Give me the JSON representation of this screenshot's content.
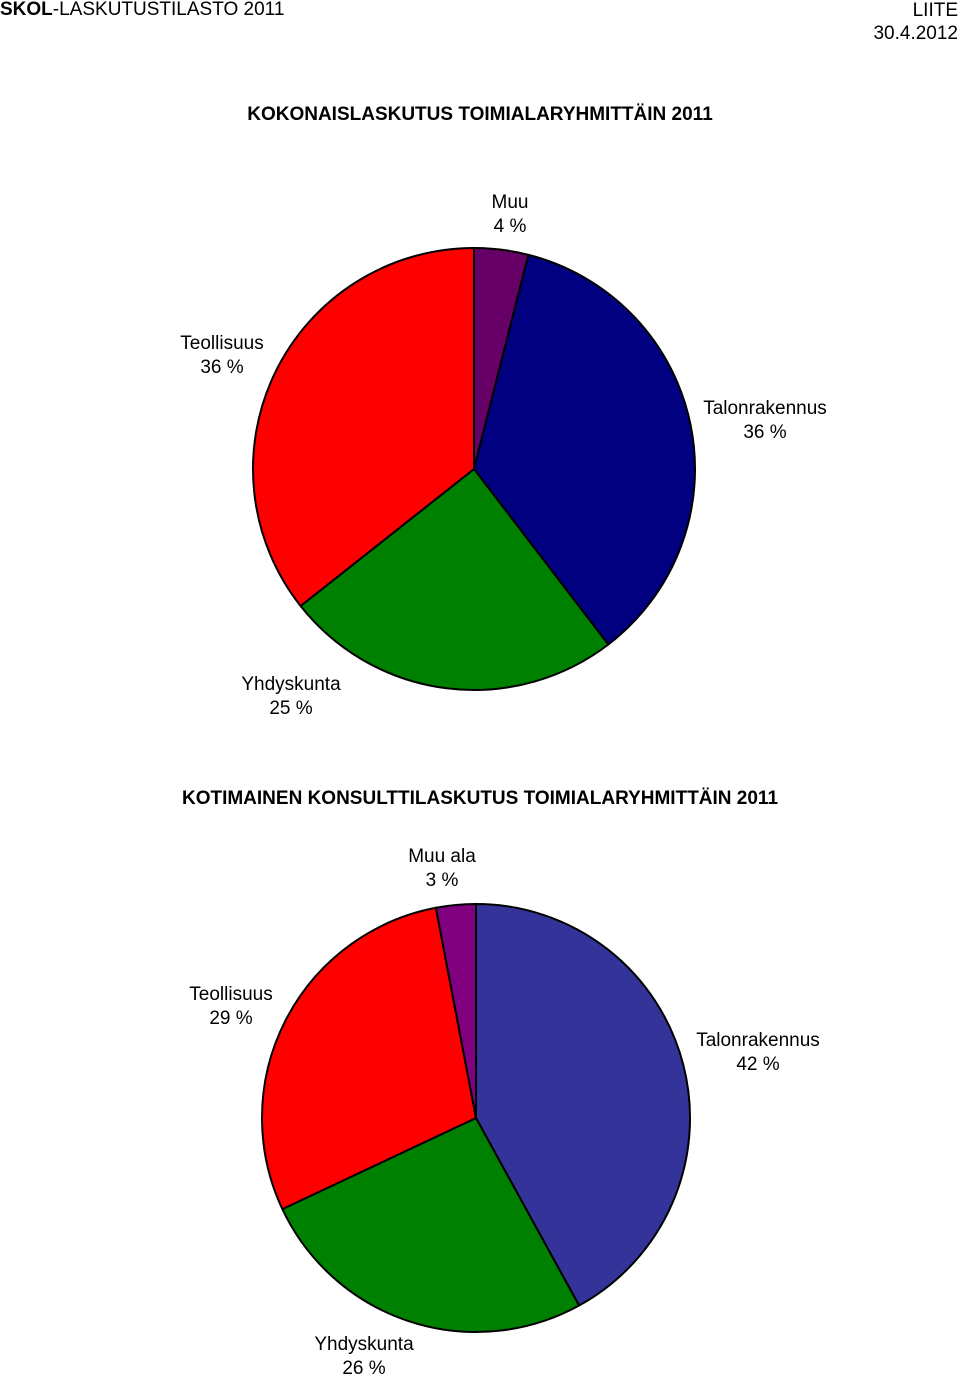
{
  "header": {
    "brand": "SKOL",
    "title_rest": "-LASKUTUSTILASTO 2011",
    "attachment": "LIITE",
    "date": "30.4.2012"
  },
  "chart_data": [
    {
      "type": "pie",
      "title": "KOKONAISLASKUTUS TOIMIALARYHMITTÄIN 2011",
      "slices": [
        {
          "label": "Muu",
          "value": 4,
          "value_label": "4 %",
          "color": "#660066"
        },
        {
          "label": "Talonrakennus",
          "value": 36,
          "value_label": "36 %",
          "color": "#000080"
        },
        {
          "label": "Yhdyskunta",
          "value": 25,
          "value_label": "25 %",
          "color": "#008000"
        },
        {
          "label": "Teollisuus",
          "value": 36,
          "value_label": "36 %",
          "color": "#FF0000"
        }
      ]
    },
    {
      "type": "pie",
      "title": "KOTIMAINEN KONSULTTILASKUTUS TOIMIALARYHMITTÄIN 2011",
      "slices": [
        {
          "label": "Talonrakennus",
          "value": 42,
          "value_label": "42 %",
          "color": "#333399"
        },
        {
          "label": "Yhdyskunta",
          "value": 26,
          "value_label": "26 %",
          "color": "#008000"
        },
        {
          "label": "Teollisuus",
          "value": 29,
          "value_label": "29 %",
          "color": "#FF0000"
        },
        {
          "label": "Muu ala",
          "value": 3,
          "value_label": "3 %",
          "color": "#800080"
        }
      ]
    }
  ]
}
